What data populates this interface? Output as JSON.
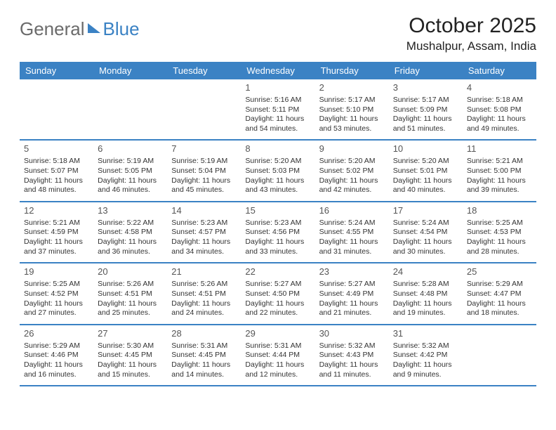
{
  "logo": {
    "text1": "General",
    "text2": "Blue"
  },
  "title": "October 2025",
  "location": "Mushalpur, Assam, India",
  "colors": {
    "header_bg": "#3b82c4",
    "divider": "#3b82c4",
    "logo_grey": "#6b6b6b",
    "logo_blue": "#3b82c4",
    "text": "#333333",
    "bg": "#ffffff"
  },
  "days_of_week": [
    "Sunday",
    "Monday",
    "Tuesday",
    "Wednesday",
    "Thursday",
    "Friday",
    "Saturday"
  ],
  "weeks": [
    [
      null,
      null,
      null,
      {
        "n": "1",
        "sunrise": "5:16 AM",
        "sunset": "5:11 PM",
        "dl": "11 hours and 54 minutes."
      },
      {
        "n": "2",
        "sunrise": "5:17 AM",
        "sunset": "5:10 PM",
        "dl": "11 hours and 53 minutes."
      },
      {
        "n": "3",
        "sunrise": "5:17 AM",
        "sunset": "5:09 PM",
        "dl": "11 hours and 51 minutes."
      },
      {
        "n": "4",
        "sunrise": "5:18 AM",
        "sunset": "5:08 PM",
        "dl": "11 hours and 49 minutes."
      }
    ],
    [
      {
        "n": "5",
        "sunrise": "5:18 AM",
        "sunset": "5:07 PM",
        "dl": "11 hours and 48 minutes."
      },
      {
        "n": "6",
        "sunrise": "5:19 AM",
        "sunset": "5:05 PM",
        "dl": "11 hours and 46 minutes."
      },
      {
        "n": "7",
        "sunrise": "5:19 AM",
        "sunset": "5:04 PM",
        "dl": "11 hours and 45 minutes."
      },
      {
        "n": "8",
        "sunrise": "5:20 AM",
        "sunset": "5:03 PM",
        "dl": "11 hours and 43 minutes."
      },
      {
        "n": "9",
        "sunrise": "5:20 AM",
        "sunset": "5:02 PM",
        "dl": "11 hours and 42 minutes."
      },
      {
        "n": "10",
        "sunrise": "5:20 AM",
        "sunset": "5:01 PM",
        "dl": "11 hours and 40 minutes."
      },
      {
        "n": "11",
        "sunrise": "5:21 AM",
        "sunset": "5:00 PM",
        "dl": "11 hours and 39 minutes."
      }
    ],
    [
      {
        "n": "12",
        "sunrise": "5:21 AM",
        "sunset": "4:59 PM",
        "dl": "11 hours and 37 minutes."
      },
      {
        "n": "13",
        "sunrise": "5:22 AM",
        "sunset": "4:58 PM",
        "dl": "11 hours and 36 minutes."
      },
      {
        "n": "14",
        "sunrise": "5:23 AM",
        "sunset": "4:57 PM",
        "dl": "11 hours and 34 minutes."
      },
      {
        "n": "15",
        "sunrise": "5:23 AM",
        "sunset": "4:56 PM",
        "dl": "11 hours and 33 minutes."
      },
      {
        "n": "16",
        "sunrise": "5:24 AM",
        "sunset": "4:55 PM",
        "dl": "11 hours and 31 minutes."
      },
      {
        "n": "17",
        "sunrise": "5:24 AM",
        "sunset": "4:54 PM",
        "dl": "11 hours and 30 minutes."
      },
      {
        "n": "18",
        "sunrise": "5:25 AM",
        "sunset": "4:53 PM",
        "dl": "11 hours and 28 minutes."
      }
    ],
    [
      {
        "n": "19",
        "sunrise": "5:25 AM",
        "sunset": "4:52 PM",
        "dl": "11 hours and 27 minutes."
      },
      {
        "n": "20",
        "sunrise": "5:26 AM",
        "sunset": "4:51 PM",
        "dl": "11 hours and 25 minutes."
      },
      {
        "n": "21",
        "sunrise": "5:26 AM",
        "sunset": "4:51 PM",
        "dl": "11 hours and 24 minutes."
      },
      {
        "n": "22",
        "sunrise": "5:27 AM",
        "sunset": "4:50 PM",
        "dl": "11 hours and 22 minutes."
      },
      {
        "n": "23",
        "sunrise": "5:27 AM",
        "sunset": "4:49 PM",
        "dl": "11 hours and 21 minutes."
      },
      {
        "n": "24",
        "sunrise": "5:28 AM",
        "sunset": "4:48 PM",
        "dl": "11 hours and 19 minutes."
      },
      {
        "n": "25",
        "sunrise": "5:29 AM",
        "sunset": "4:47 PM",
        "dl": "11 hours and 18 minutes."
      }
    ],
    [
      {
        "n": "26",
        "sunrise": "5:29 AM",
        "sunset": "4:46 PM",
        "dl": "11 hours and 16 minutes."
      },
      {
        "n": "27",
        "sunrise": "5:30 AM",
        "sunset": "4:45 PM",
        "dl": "11 hours and 15 minutes."
      },
      {
        "n": "28",
        "sunrise": "5:31 AM",
        "sunset": "4:45 PM",
        "dl": "11 hours and 14 minutes."
      },
      {
        "n": "29",
        "sunrise": "5:31 AM",
        "sunset": "4:44 PM",
        "dl": "11 hours and 12 minutes."
      },
      {
        "n": "30",
        "sunrise": "5:32 AM",
        "sunset": "4:43 PM",
        "dl": "11 hours and 11 minutes."
      },
      {
        "n": "31",
        "sunrise": "5:32 AM",
        "sunset": "4:42 PM",
        "dl": "11 hours and 9 minutes."
      },
      null
    ]
  ],
  "labels": {
    "sunrise": "Sunrise:",
    "sunset": "Sunset:",
    "daylight": "Daylight:"
  }
}
